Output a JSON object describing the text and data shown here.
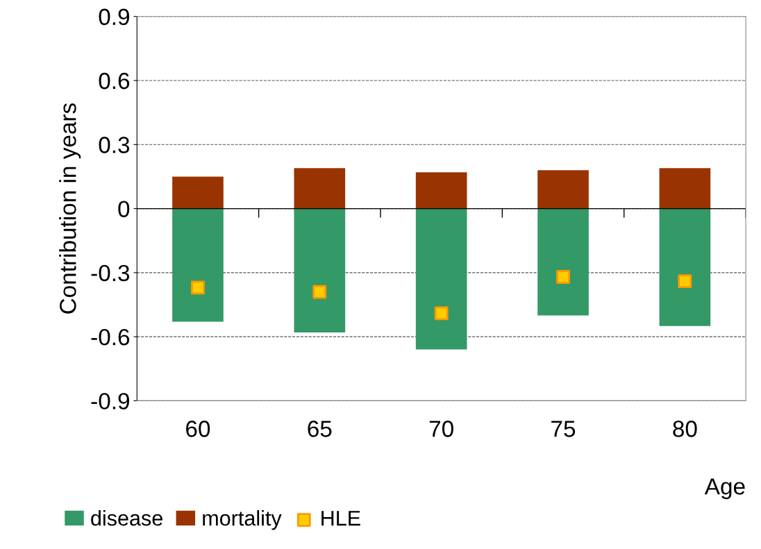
{
  "chart_data": {
    "type": "bar",
    "stacked": true,
    "xlabel": "Age",
    "ylabel": "Contribution in years",
    "categories": [
      "60",
      "65",
      "70",
      "75",
      "80"
    ],
    "series": [
      {
        "name": "disease",
        "color": "#339966",
        "values": [
          -0.53,
          -0.58,
          -0.66,
          -0.5,
          -0.55
        ]
      },
      {
        "name": "mortality",
        "color": "#993300",
        "values": [
          0.15,
          0.19,
          0.17,
          0.18,
          0.19
        ]
      },
      {
        "name": "HLE",
        "type": "scatter",
        "color": "#ffcc00",
        "x": [
          "60",
          "65",
          "70",
          "75",
          "80"
        ],
        "values": [
          -0.37,
          -0.39,
          -0.49,
          -0.32,
          -0.34
        ]
      }
    ],
    "marker": "square",
    "ylim": [
      -0.9,
      0.9
    ],
    "yticks": [
      -0.9,
      -0.6,
      -0.3,
      0,
      0.3,
      0.6,
      0.9
    ],
    "grid": "y",
    "legend": "bottom left"
  }
}
